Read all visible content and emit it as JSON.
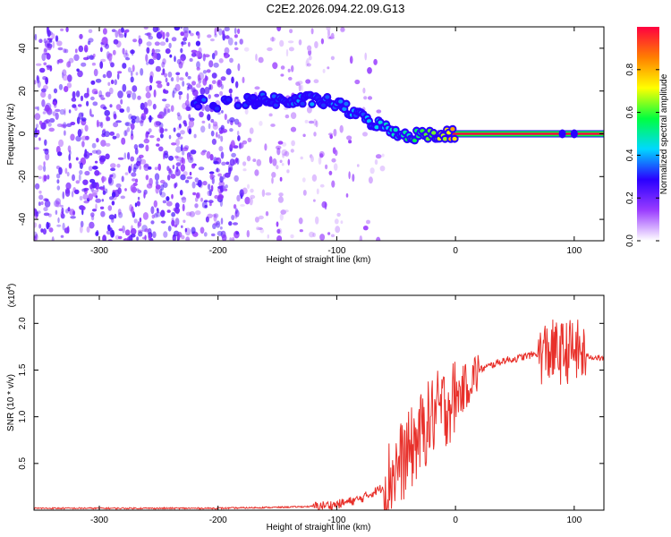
{
  "title": "C2E2.2026.094.22.09.G13",
  "colors": {
    "snr_line": "#e8302a",
    "noise_purple": "#6a14e6",
    "axis": "#000000"
  },
  "chart_data": [
    {
      "type": "heatmap",
      "xlabel": "Height of straight line (km)",
      "ylabel": "Frequency (Hz)",
      "xlim": [
        -355,
        125
      ],
      "ylim": [
        -50,
        50
      ],
      "x_ticks": [
        -300,
        -200,
        -100,
        0,
        100
      ],
      "y_ticks": [
        -40,
        -20,
        0,
        20,
        40
      ],
      "colorbar": {
        "label": "Normalized spectral amplitude",
        "range": [
          0,
          1
        ],
        "ticks": [
          0.0,
          0.2,
          0.4,
          0.6,
          0.8
        ],
        "colormap": [
          "#ffffff",
          "#9a3cff",
          "#2a00ff",
          "#00d8ff",
          "#00ff40",
          "#ffff00",
          "#ff7f00",
          "#ff0040"
        ]
      },
      "ridge": [
        {
          "x": -220,
          "y": 15,
          "amp": 0.3
        },
        {
          "x": -200,
          "y": 14,
          "amp": 0.3
        },
        {
          "x": -180,
          "y": 15,
          "amp": 0.32
        },
        {
          "x": -160,
          "y": 16,
          "amp": 0.33
        },
        {
          "x": -140,
          "y": 15,
          "amp": 0.34
        },
        {
          "x": -120,
          "y": 16,
          "amp": 0.35
        },
        {
          "x": -100,
          "y": 14,
          "amp": 0.35
        },
        {
          "x": -80,
          "y": 8,
          "amp": 0.38
        },
        {
          "x": -60,
          "y": 3,
          "amp": 0.42
        },
        {
          "x": -40,
          "y": -1,
          "amp": 0.5
        },
        {
          "x": -20,
          "y": 0,
          "amp": 0.6
        },
        {
          "x": 0,
          "y": 0,
          "amp": 0.8
        },
        {
          "x": 50,
          "y": 0,
          "amp": 0.95
        },
        {
          "x": 100,
          "y": 0,
          "amp": 0.95
        },
        {
          "x": 125,
          "y": 0,
          "amp": 0.95
        }
      ]
    },
    {
      "type": "line",
      "xlabel": "Height of straight line (km)",
      "ylabel": "SNR (10 * v/v)",
      "y_multiplier": "(x10",
      "y_multiplier_exp": "4",
      "xlim": [
        -355,
        125
      ],
      "ylim": [
        0,
        2.3
      ],
      "x_ticks": [
        -300,
        -200,
        -100,
        0,
        100
      ],
      "y_ticks": [
        0.5,
        1.0,
        1.5,
        2.0
      ],
      "series": [
        {
          "x": [
            -355,
            -300,
            -250,
            -200,
            -150,
            -120,
            -100,
            -80,
            -60,
            -50,
            -40,
            -30,
            -20,
            -10,
            0,
            10,
            20,
            30,
            40,
            50,
            60,
            70,
            80,
            90,
            100,
            110,
            125
          ],
          "y": [
            0.02,
            0.02,
            0.02,
            0.02,
            0.03,
            0.04,
            0.06,
            0.12,
            0.25,
            0.45,
            0.6,
            0.8,
            1.0,
            1.1,
            1.2,
            1.35,
            1.5,
            1.55,
            1.6,
            1.62,
            1.65,
            1.68,
            1.7,
            1.68,
            1.72,
            1.65,
            1.62
          ]
        }
      ]
    }
  ]
}
